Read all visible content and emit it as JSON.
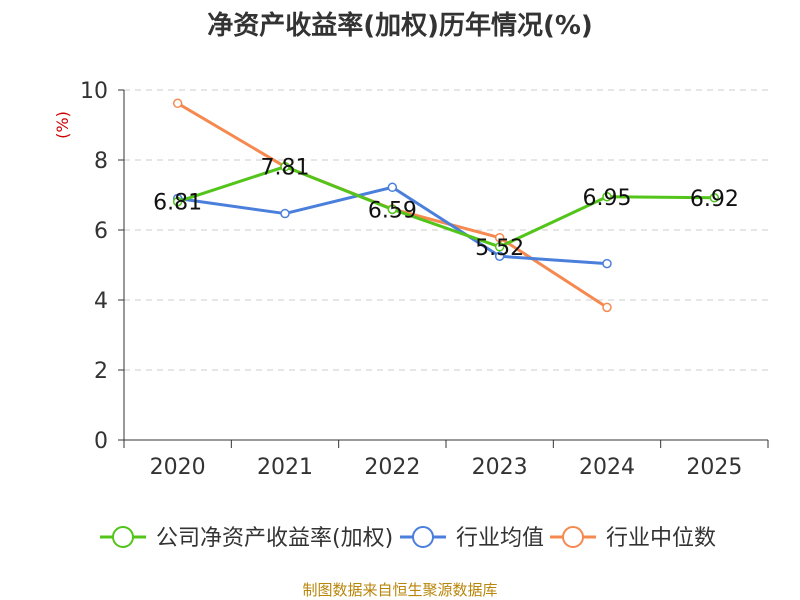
{
  "chart_data": {
    "type": "line",
    "title": "净资产收益率(加权)历年情况(%)",
    "ylabel": "(%)",
    "xlabel": "",
    "categories": [
      "2020",
      "2021",
      "2022",
      "2023",
      "2024",
      "2025"
    ],
    "ylim": [
      0,
      10
    ],
    "yticks": [
      0,
      2,
      4,
      6,
      8,
      10
    ],
    "grid": true,
    "legend_position": "bottom",
    "series": [
      {
        "name": "公司净资产收益率(加权)",
        "color": "#52c41a",
        "values": [
          6.81,
          7.81,
          6.59,
          5.52,
          6.95,
          6.92
        ],
        "labels": [
          "6.81",
          "7.81",
          "6.59",
          "5.52",
          "6.95",
          "6.92"
        ]
      },
      {
        "name": "行业均值",
        "color": "#4a7fdc",
        "values": [
          6.9,
          6.47,
          7.22,
          5.25,
          5.04,
          null
        ]
      },
      {
        "name": "行业中位数",
        "color": "#f5894f",
        "values": [
          9.62,
          7.81,
          6.6,
          5.78,
          3.79,
          null
        ]
      }
    ],
    "source": "制图数据来自恒生聚源数据库"
  }
}
